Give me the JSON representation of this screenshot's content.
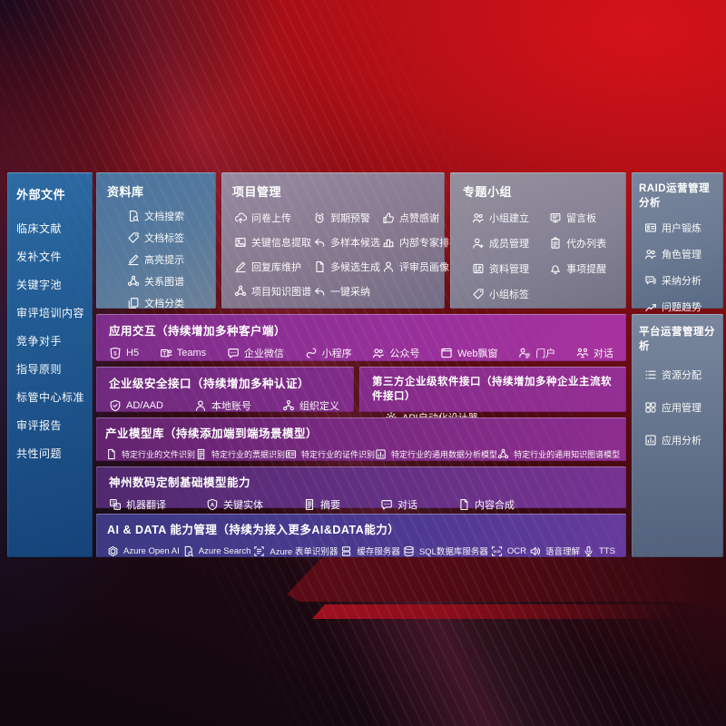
{
  "colors": {
    "background_red": "#a30d13",
    "sidebar_blue": "#2d6ba4",
    "library_blue": "#4a74a0",
    "gray_panel": "#94909d",
    "magenta_band": "#a7329e",
    "purple_band": "#7b2a82",
    "indigo_band": "#3c3a83"
  },
  "sidebar": {
    "title": "外部文件",
    "items": [
      "临床文献",
      "发补文件",
      "关键字池",
      "审评培训内容",
      "竞争对手",
      "指导原则",
      "标管中心标准",
      "审评报告",
      "共性问题"
    ]
  },
  "boxes": {
    "library": {
      "title": "资料库",
      "items": [
        {
          "icon": "doc-search",
          "label": "文档搜索"
        },
        {
          "icon": "tag",
          "label": "文档标签"
        },
        {
          "icon": "pencil",
          "label": "高亮提示"
        },
        {
          "icon": "graph",
          "label": "关系图谱"
        },
        {
          "icon": "copy",
          "label": "文档分类"
        }
      ]
    },
    "project": {
      "title": "项目管理",
      "items": [
        {
          "icon": "cloud-upload",
          "label": "问卷上传"
        },
        {
          "icon": "alarm",
          "label": "到期预警"
        },
        {
          "icon": "thumb",
          "label": "点赞感谢"
        },
        {
          "icon": "image",
          "label": "关键信息提取"
        },
        {
          "icon": "reply",
          "label": "多样本候选"
        },
        {
          "icon": "rank",
          "label": "内部专家排名"
        },
        {
          "icon": "pencil",
          "label": "回复库维护"
        },
        {
          "icon": "grid",
          "label": "多候选生成"
        },
        {
          "icon": "person",
          "label": "评审员画像"
        },
        {
          "icon": "graph",
          "label": "项目知识图谱"
        },
        {
          "icon": "reply",
          "label": "一键采纳"
        }
      ]
    },
    "groups": {
      "title": "专题小组",
      "items": [
        {
          "icon": "people",
          "label": "小组建立"
        },
        {
          "icon": "board",
          "label": "留言板"
        },
        {
          "icon": "person-add",
          "label": "成员管理"
        },
        {
          "icon": "clipboard",
          "label": "代办列表"
        },
        {
          "icon": "album",
          "label": "资料管理"
        },
        {
          "icon": "bell",
          "label": "事项提醒"
        },
        {
          "icon": "tag",
          "label": "小组标签"
        }
      ]
    },
    "raid": {
      "title": "RAID运营管理分析",
      "items": [
        {
          "icon": "idcard",
          "label": "用户锻炼"
        },
        {
          "icon": "people",
          "label": "角色管理"
        },
        {
          "icon": "chat-qa",
          "label": "采纳分析"
        },
        {
          "icon": "trend",
          "label": "问题趋势"
        }
      ]
    },
    "platform": {
      "title": "平台运营管理分析",
      "items": [
        {
          "icon": "list",
          "label": "资源分配"
        },
        {
          "icon": "apps",
          "label": "应用管理"
        },
        {
          "icon": "chart",
          "label": "应用分析"
        }
      ]
    }
  },
  "bands": {
    "interaction": {
      "title": "应用交互（持续增加多种客户端）",
      "items": [
        {
          "icon": "h5",
          "label": "H5"
        },
        {
          "icon": "teams",
          "label": "Teams"
        },
        {
          "icon": "chat",
          "label": "企业微信"
        },
        {
          "icon": "loop",
          "label": "小程序"
        },
        {
          "icon": "people",
          "label": "公众号"
        },
        {
          "icon": "window",
          "label": "Web飘窗"
        },
        {
          "icon": "portal",
          "label": "门户"
        },
        {
          "icon": "dialog",
          "label": "对话"
        }
      ]
    },
    "security": {
      "title": "企业级安全接口（持续增加多种认证）",
      "items": [
        {
          "icon": "shield",
          "label": "AD/AAD"
        },
        {
          "icon": "person",
          "label": "本地账号"
        },
        {
          "icon": "org",
          "label": "组织定义"
        }
      ]
    },
    "thirdparty": {
      "title": "第三方企业级软件接口（持续增加多种企业主流软件接口）",
      "items": [
        {
          "icon": "gear",
          "label": "API自动化设计器"
        }
      ]
    },
    "industry": {
      "title": "产业模型库（持续添加端到端场景模型）",
      "items": [
        {
          "icon": "doc",
          "label": "特定行业的文件识别"
        },
        {
          "icon": "doc-lines",
          "label": "特定行业的票据识别"
        },
        {
          "icon": "idcard",
          "label": "特定行业的证件识别"
        },
        {
          "icon": "chart",
          "label": "特定行业的通用数据分析模型"
        },
        {
          "icon": "graph",
          "label": "特定行业的通用知识图谱模型"
        }
      ]
    },
    "dc_models": {
      "title": "神州数码定制基础模型能力",
      "items": [
        {
          "icon": "translate",
          "label": "机器翻译"
        },
        {
          "icon": "shield-a",
          "label": "关键实体"
        },
        {
          "icon": "doc-lines",
          "label": "摘要"
        },
        {
          "icon": "chat",
          "label": "对话"
        },
        {
          "icon": "grid",
          "label": "内容合成"
        }
      ]
    },
    "ai_data": {
      "title": "AI & DATA 能力管理（持续为接入更多AI&DATA能力）",
      "items": [
        {
          "icon": "openai",
          "label": "Azure Open AI"
        },
        {
          "icon": "doc-search",
          "label": "Azure Search"
        },
        {
          "icon": "form",
          "label": "Azure 表单识别器"
        },
        {
          "icon": "cache",
          "label": "缓存服务器"
        },
        {
          "icon": "db",
          "label": "SQL数据库服务器"
        },
        {
          "icon": "ocr",
          "label": "OCR"
        },
        {
          "icon": "speaker",
          "label": "语音理解"
        },
        {
          "icon": "mic",
          "label": "TTS"
        }
      ]
    }
  }
}
